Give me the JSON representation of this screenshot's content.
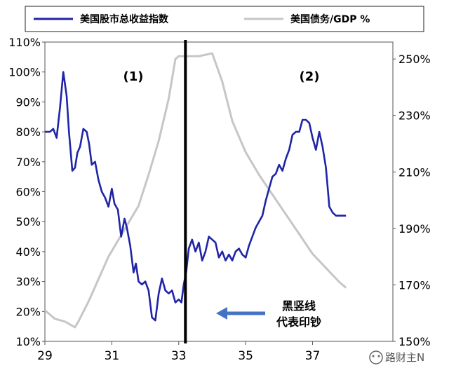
{
  "chart_data": {
    "type": "line",
    "legend": [
      {
        "label": "美国股市总收益指数",
        "color": "#1f24a8"
      },
      {
        "label": "美国债务/GDP %",
        "color": "#c6c6c6"
      }
    ],
    "legend_placement": "top",
    "x_ticks": [
      "29",
      "31",
      "33",
      "35",
      "37"
    ],
    "x_range": [
      29,
      39.4
    ],
    "y_left_ticks": [
      "10%",
      "20%",
      "30%",
      "40%",
      "50%",
      "60%",
      "70%",
      "80%",
      "90%",
      "100%",
      "110%"
    ],
    "y_left_range": [
      10,
      110
    ],
    "y_right_ticks": [
      "150%",
      "170%",
      "190%",
      "210%",
      "230%",
      "250%"
    ],
    "y_right_range": [
      150,
      256
    ],
    "region_labels": [
      "(1)",
      "(2)"
    ],
    "vertical_line_x": 33.2,
    "annotation": {
      "lines": [
        "黑竖线",
        "代表印钞"
      ],
      "arrow_target_x": 33.3,
      "arrow_target_y": 20
    },
    "watermark": "路财主N",
    "series": [
      {
        "name": "美国股市总收益指数",
        "axis": "left",
        "color": "#1f24a8",
        "x": [
          29.0,
          29.15,
          29.25,
          29.35,
          29.45,
          29.55,
          29.65,
          29.72,
          29.82,
          29.9,
          29.97,
          30.05,
          30.15,
          30.25,
          30.32,
          30.4,
          30.5,
          30.6,
          30.7,
          30.8,
          30.9,
          31.0,
          31.08,
          31.18,
          31.28,
          31.38,
          31.45,
          31.55,
          31.65,
          31.72,
          31.8,
          31.9,
          32.0,
          32.1,
          32.2,
          32.3,
          32.4,
          32.5,
          32.6,
          32.7,
          32.8,
          32.9,
          33.0,
          33.08,
          33.15,
          33.22,
          33.3,
          33.4,
          33.5,
          33.6,
          33.7,
          33.8,
          33.9,
          34.0,
          34.1,
          34.2,
          34.3,
          34.4,
          34.5,
          34.6,
          34.7,
          34.8,
          34.9,
          35.0,
          35.1,
          35.2,
          35.3,
          35.4,
          35.5,
          35.6,
          35.7,
          35.8,
          35.9,
          36.0,
          36.1,
          36.2,
          36.3,
          36.4,
          36.5,
          36.6,
          36.7,
          36.8,
          36.9,
          37.0,
          37.1,
          37.2,
          37.3,
          37.4,
          37.5,
          37.6,
          37.7,
          37.8,
          37.9,
          38.0
        ],
        "y": [
          80,
          80,
          81,
          78,
          88,
          100,
          92,
          80,
          67,
          68,
          73,
          75,
          81,
          80,
          76,
          69,
          70,
          64,
          60,
          58,
          55,
          61,
          56,
          54,
          45,
          51,
          48,
          42,
          33,
          36,
          30,
          29,
          30,
          27,
          18,
          17,
          26,
          31,
          27,
          26,
          27,
          23,
          24,
          23,
          29,
          33,
          41,
          44,
          40,
          43,
          37,
          40,
          45,
          44,
          43,
          38,
          40,
          37,
          39,
          37,
          40,
          41,
          39,
          38,
          42,
          45,
          48,
          50,
          52,
          57,
          61,
          65,
          66,
          69,
          67,
          71,
          74,
          79,
          80,
          80,
          84,
          84,
          83,
          78,
          74,
          80,
          75,
          68,
          55,
          53,
          52,
          52,
          52,
          52
        ],
        "_x_trim_note": ""
      },
      {
        "name": "美国债务/GDP %",
        "axis": "right",
        "color": "#c6c6c6",
        "x": [
          29.0,
          29.3,
          29.6,
          29.9,
          30.0,
          30.3,
          30.6,
          30.9,
          31.2,
          31.5,
          31.8,
          32.1,
          32.4,
          32.7,
          32.9,
          33.0,
          33.2,
          33.6,
          34.0,
          34.3,
          34.6,
          35.0,
          35.4,
          35.8,
          36.2,
          36.6,
          37.0,
          37.4,
          37.8,
          38.0
        ],
        "y": [
          161,
          158,
          157,
          155,
          157,
          164,
          172,
          180,
          186,
          192,
          198,
          209,
          221,
          236,
          250,
          251,
          251,
          251,
          252,
          242,
          228,
          217,
          209,
          202,
          195,
          188,
          181,
          176,
          171,
          169
        ]
      }
    ]
  }
}
